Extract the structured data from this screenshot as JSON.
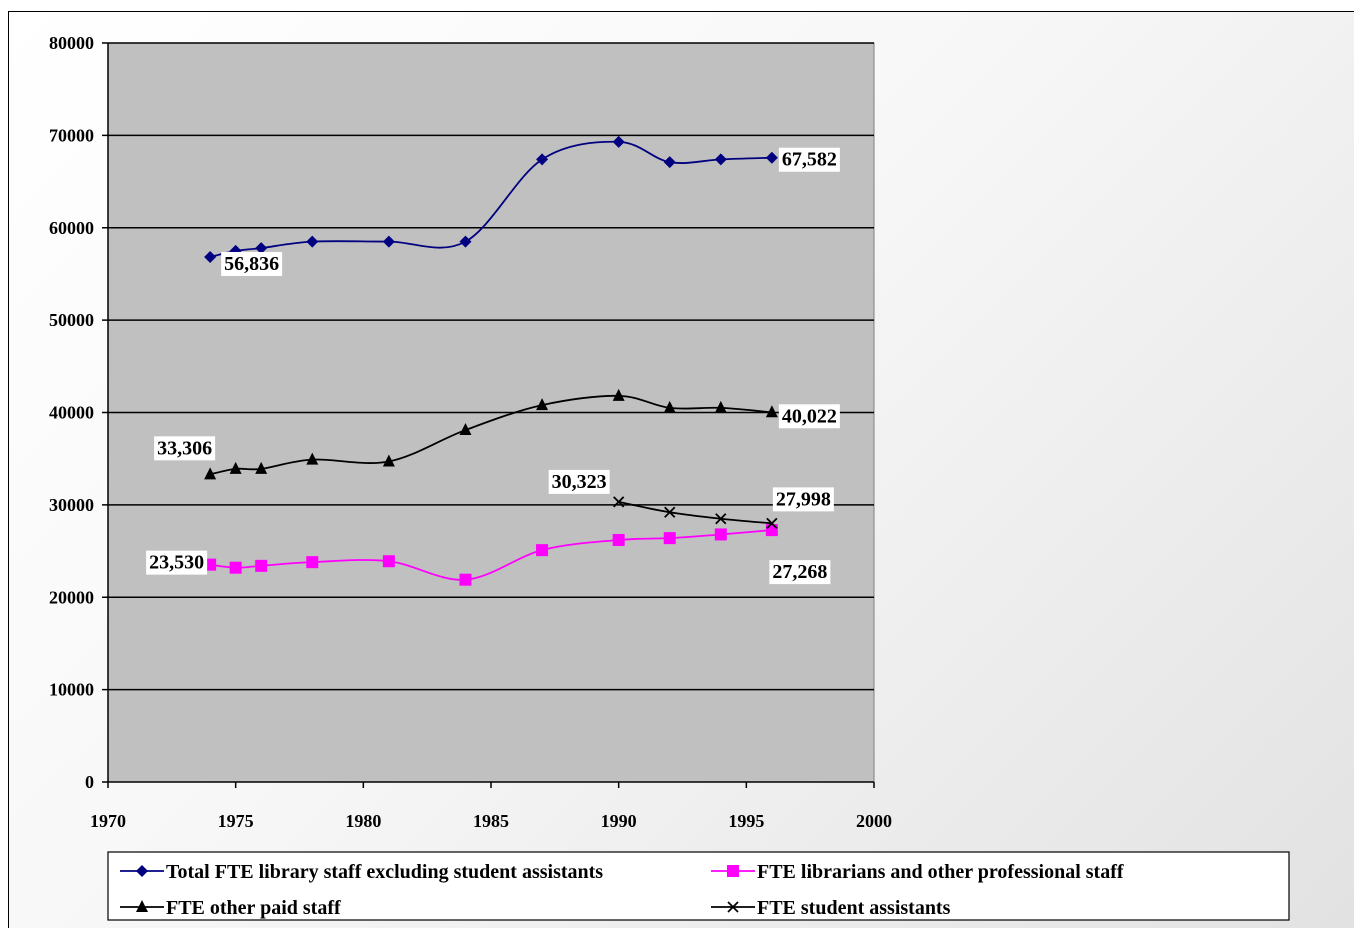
{
  "chart_data": {
    "type": "line",
    "title": "",
    "xlabel": "",
    "ylabel": "",
    "xlim": [
      1970,
      2000
    ],
    "ylim": [
      0,
      80000
    ],
    "x_ticks": [
      1970,
      1975,
      1980,
      1985,
      1990,
      1995,
      2000
    ],
    "y_ticks": [
      0,
      10000,
      20000,
      30000,
      40000,
      50000,
      60000,
      70000,
      80000
    ],
    "grid": true,
    "legend_position": "bottom",
    "series": [
      {
        "name": "Total FTE library staff excluding student assistants",
        "color": "#000080",
        "marker": "diamond",
        "x": [
          1974,
          1975,
          1976,
          1978,
          1981,
          1984,
          1987,
          1990,
          1992,
          1994,
          1996
        ],
        "y": [
          56836,
          57500,
          57800,
          58500,
          58500,
          58500,
          67400,
          69300,
          67100,
          67400,
          67582
        ],
        "labels": [
          {
            "index": 0,
            "text": "56,836"
          },
          {
            "index": 10,
            "text": "67,582"
          }
        ]
      },
      {
        "name": "FTE librarians and other professional staff",
        "color": "#ff00ff",
        "marker": "square",
        "x": [
          1974,
          1975,
          1976,
          1978,
          1981,
          1984,
          1987,
          1990,
          1992,
          1994,
          1996
        ],
        "y": [
          23530,
          23200,
          23400,
          23800,
          23900,
          21900,
          25100,
          26200,
          26400,
          26800,
          27268
        ],
        "labels": [
          {
            "index": 0,
            "text": "23,530"
          },
          {
            "index": 10,
            "text": "27,268"
          }
        ]
      },
      {
        "name": "FTE other paid staff",
        "color": "#000000",
        "marker": "triangle",
        "x": [
          1974,
          1975,
          1976,
          1978,
          1981,
          1984,
          1987,
          1990,
          1992,
          1994,
          1996
        ],
        "y": [
          33306,
          33900,
          33900,
          34900,
          34700,
          38100,
          40800,
          41800,
          40500,
          40500,
          40022
        ],
        "labels": [
          {
            "index": 0,
            "text": "33,306"
          },
          {
            "index": 10,
            "text": "40,022"
          }
        ]
      },
      {
        "name": "FTE student assistants",
        "color": "#000000",
        "marker": "x",
        "x": [
          1990,
          1992,
          1994,
          1996
        ],
        "y": [
          30323,
          29200,
          28500,
          27998
        ],
        "labels": [
          {
            "index": 0,
            "text": "30,323"
          },
          {
            "index": 3,
            "text": "27,998"
          }
        ]
      }
    ]
  }
}
